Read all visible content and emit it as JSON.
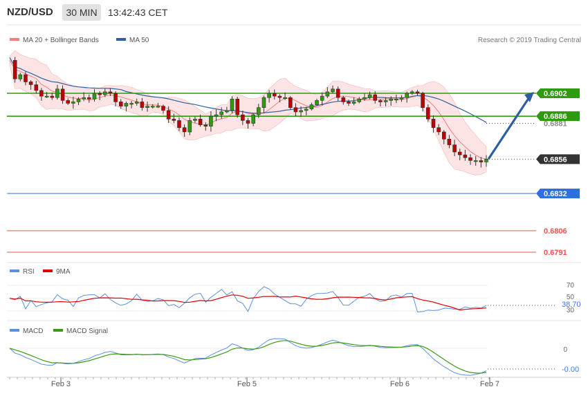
{
  "header": {
    "symbol": "NZD/USD",
    "timeframe": "30 MIN",
    "time": "13:42:43 CET"
  },
  "credit": "Research © 2019 Trading Central",
  "price_panel": {
    "legend": [
      {
        "label": "MA 20 + Bollinger Bands",
        "color": "#f08080"
      },
      {
        "label": "MA 50",
        "color": "#3060a0"
      }
    ],
    "levels": [
      {
        "value": 0.6902,
        "label": "0.6902",
        "color": "#2e9a0e",
        "kind": "resistance"
      },
      {
        "value": 0.6886,
        "label": "0.6886",
        "color": "#2e9a0e",
        "kind": "resistance"
      },
      {
        "value": 0.6881,
        "label": "0.6881",
        "color": "#888888",
        "kind": "ma-marker"
      },
      {
        "value": 0.6856,
        "label": "0.6856",
        "color": "#333333",
        "kind": "current"
      },
      {
        "value": 0.6832,
        "label": "0.6832",
        "color": "#2f6fe0",
        "kind": "pivot"
      },
      {
        "value": 0.6806,
        "label": "0.6806",
        "color": "#f05050",
        "kind": "support"
      },
      {
        "value": 0.6791,
        "label": "0.6791",
        "color": "#f05050",
        "kind": "support"
      }
    ]
  },
  "rsi_panel": {
    "legend": [
      {
        "label": "RSI",
        "color": "#5b8fe0"
      },
      {
        "label": "9MA",
        "color": "#e00000"
      }
    ],
    "ticks": [
      "70",
      "50",
      "30"
    ],
    "current_label": "38.70"
  },
  "macd_panel": {
    "legend": [
      {
        "label": "MACD",
        "color": "#5b8fe0"
      },
      {
        "label": "MACD Signal",
        "color": "#3a9a12"
      }
    ],
    "ticks": [
      "0"
    ],
    "current_label": "-0.00"
  },
  "x_axis": {
    "labels": [
      "Feb 3",
      "Feb 5",
      "Feb 6",
      "Feb 7"
    ]
  },
  "chart_data": {
    "type": "candlestick",
    "x_labels": [
      "Feb 3",
      "Feb 5",
      "Feb 6",
      "Feb 7"
    ],
    "price_range": [
      0.6785,
      0.6925
    ],
    "price_path": [
      0.6925,
      0.6912,
      0.6915,
      0.691,
      0.6908,
      0.6904,
      0.69,
      0.69,
      0.6899,
      0.6905,
      0.6897,
      0.6895,
      0.6896,
      0.6898,
      0.6899,
      0.6898,
      0.6902,
      0.6901,
      0.6903,
      0.6902,
      0.6896,
      0.6893,
      0.6895,
      0.6895,
      0.6896,
      0.6892,
      0.6893,
      0.6893,
      0.6893,
      0.689,
      0.6884,
      0.6883,
      0.6878,
      0.6875,
      0.6883,
      0.6884,
      0.688,
      0.6879,
      0.6886,
      0.6887,
      0.6889,
      0.689,
      0.6898,
      0.6887,
      0.6883,
      0.6881,
      0.6887,
      0.6892,
      0.6899,
      0.6902,
      0.69,
      0.6899,
      0.6899,
      0.6892,
      0.6889,
      0.689,
      0.6891,
      0.6894,
      0.6897,
      0.69,
      0.6903,
      0.6905,
      0.6899,
      0.6896,
      0.6895,
      0.6896,
      0.6898,
      0.6899,
      0.6901,
      0.6897,
      0.6896,
      0.6897,
      0.6898,
      0.6898,
      0.6899,
      0.6902,
      0.6903,
      0.6902,
      0.6892,
      0.6884,
      0.6878,
      0.6875,
      0.687,
      0.6866,
      0.6861,
      0.6859,
      0.6857,
      0.6855,
      0.6855,
      0.6854,
      0.6856
    ],
    "projection": {
      "from": 0.6856,
      "to": 0.6902
    },
    "rsi": {
      "range": [
        20,
        80
      ],
      "ticks": [
        70,
        50,
        30
      ],
      "current": 38.7
    },
    "macd": {
      "current": -0.0
    }
  }
}
